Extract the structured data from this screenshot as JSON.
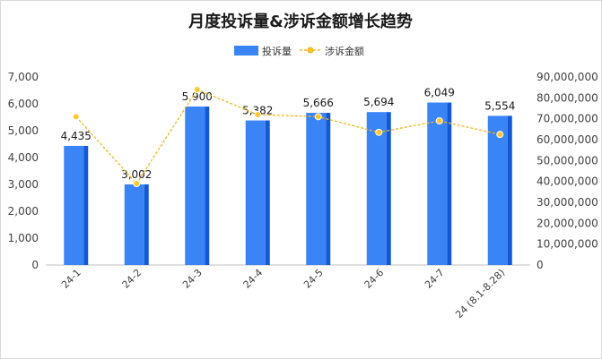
{
  "chart_data": {
    "type": "bar",
    "title": "月度投诉量&涉诉金额增长趋势",
    "categories": [
      "24-1",
      "24-2",
      "24-3",
      "24-4",
      "24-5",
      "24-6",
      "24-7",
      "24 (8.1-8.28)"
    ],
    "series": [
      {
        "name": "投诉量",
        "type": "bar",
        "axis": "left",
        "values": [
          4435,
          3002,
          5900,
          5382,
          5666,
          5694,
          6049,
          5554
        ],
        "labels": [
          "4,435",
          "3,002",
          "5,900",
          "5,382",
          "5,666",
          "5,694",
          "6,049",
          "5,554"
        ]
      },
      {
        "name": "涉诉金额",
        "type": "line",
        "axis": "right",
        "style": "dashed",
        "values": [
          71000000,
          39000000,
          84000000,
          72000000,
          71000000,
          63500000,
          69000000,
          62500000
        ]
      }
    ],
    "y_left": {
      "ylim": [
        0,
        7000
      ],
      "ticks": [
        0,
        1000,
        2000,
        3000,
        4000,
        5000,
        6000,
        7000
      ],
      "tick_labels": [
        "0",
        "1,000",
        "2,000",
        "3,000",
        "4,000",
        "5,000",
        "6,000",
        "7,000"
      ]
    },
    "y_right": {
      "ylim": [
        0,
        90000000
      ],
      "ticks": [
        0,
        10000000,
        20000000,
        30000000,
        40000000,
        50000000,
        60000000,
        70000000,
        80000000,
        90000000
      ],
      "tick_labels": [
        "0",
        "10,000,000",
        "20,000,000",
        "30,000,000",
        "40,000,000",
        "50,000,000",
        "60,000,000",
        "70,000,000",
        "80,000,000",
        "90,000,000"
      ]
    },
    "grid": false,
    "legend": "top-center",
    "colors": {
      "bar_front": "#3b84f6",
      "bar_side": "#1359d6",
      "line": "#f3b416",
      "line_marker_fill": "#ffc72b",
      "axis": "#bfbfbf"
    }
  }
}
